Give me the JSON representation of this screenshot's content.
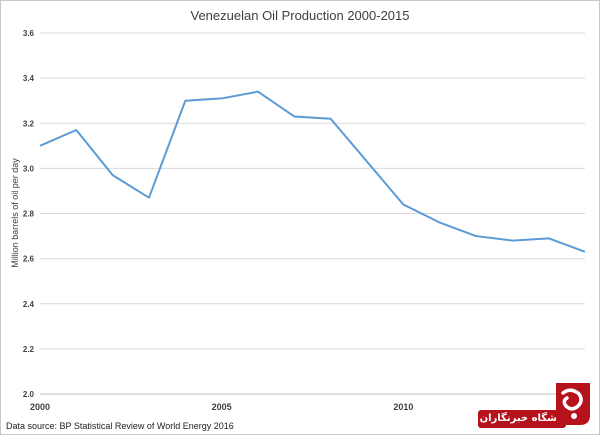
{
  "chart_data": {
    "type": "line",
    "title": "Venezuelan Oil Production 2000-2015",
    "ylabel": "Million barrels of oil per day",
    "xlabel": "",
    "xlim": [
      2000,
      2015
    ],
    "ylim": [
      2.0,
      3.6
    ],
    "y_ticks": [
      "2.0",
      "2.2",
      "2.4",
      "2.6",
      "2.8",
      "3.0",
      "3.2",
      "3.4",
      "3.6"
    ],
    "x_ticks": [
      "2000",
      "2005",
      "2010"
    ],
    "x": [
      2000,
      2001,
      2002,
      2003,
      2004,
      2005,
      2006,
      2007,
      2008,
      2009,
      2010,
      2011,
      2012,
      2013,
      2014,
      2015
    ],
    "series": [
      {
        "values": [
          3.1,
          3.17,
          2.97,
          2.87,
          3.3,
          3.31,
          3.34,
          3.23,
          3.22,
          3.03,
          2.84,
          2.76,
          2.7,
          2.68,
          2.69,
          2.63
        ],
        "color": "#5b9bd5"
      }
    ],
    "grid": true,
    "legend": false,
    "source": "Data source: BP Statistical Review of World Energy 2016"
  },
  "watermark": {
    "text": "باشگاه خبرنگاران",
    "color": "#b5121b"
  }
}
